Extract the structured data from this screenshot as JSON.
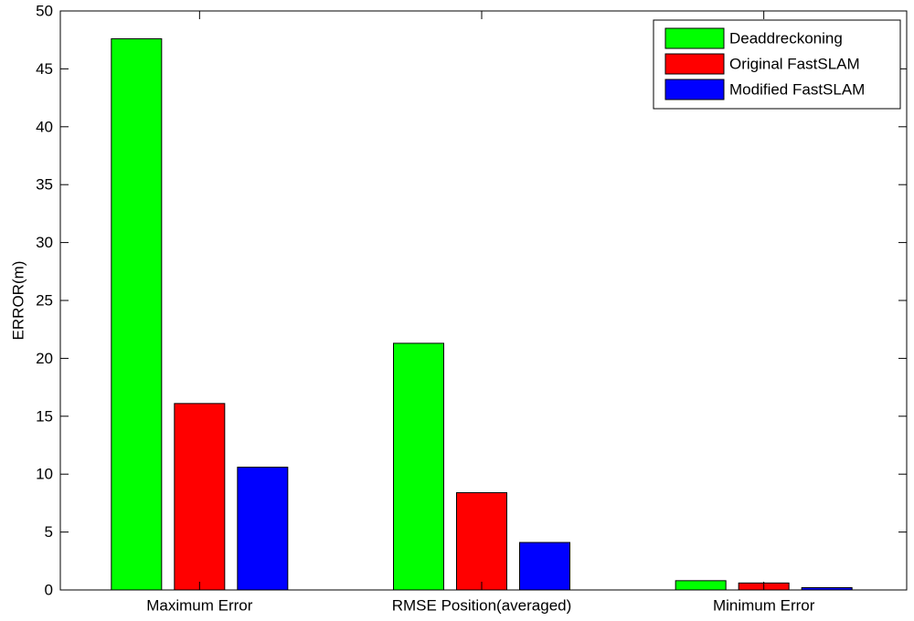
{
  "chart_data": {
    "type": "bar",
    "title": "",
    "xlabel": "",
    "ylabel": "ERROR(m)",
    "ylim": [
      0,
      50
    ],
    "yticks": [
      0,
      5,
      10,
      15,
      20,
      25,
      30,
      35,
      40,
      45,
      50
    ],
    "categories": [
      "Maximum Error",
      "RMSE Position(averaged)",
      "Minimum Error"
    ],
    "series": [
      {
        "name": "Deaddreckoning",
        "color": "#00ff00",
        "values": [
          47.6,
          21.3,
          0.8
        ]
      },
      {
        "name": "Original FastSLAM",
        "color": "#ff0000",
        "values": [
          16.1,
          8.4,
          0.6
        ]
      },
      {
        "name": "Modified FastSLAM",
        "color": "#0000ff",
        "values": [
          10.6,
          4.1,
          0.2
        ]
      }
    ],
    "legend_position": "top-right",
    "grid": false
  }
}
